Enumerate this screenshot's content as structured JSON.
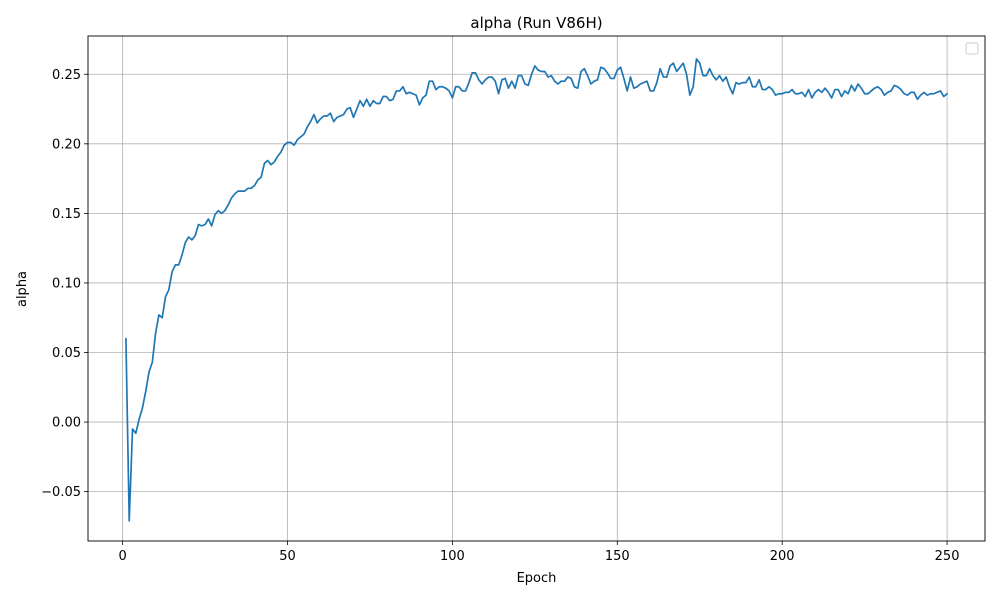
{
  "chart_data": {
    "type": "line",
    "title": "alpha (Run V86H)",
    "xlabel": "Epoch",
    "ylabel": "alpha",
    "xlim": [
      -10.5,
      261.5
    ],
    "ylim": [
      -0.0855,
      0.2775
    ],
    "xticks": [
      0,
      50,
      100,
      150,
      200,
      250
    ],
    "xtick_labels": [
      "0",
      "50",
      "100",
      "150",
      "200",
      "250"
    ],
    "yticks": [
      -0.05,
      0.0,
      0.05,
      0.1,
      0.15,
      0.2,
      0.25
    ],
    "ytick_labels": [
      "−0.05",
      "0.00",
      "0.05",
      "0.10",
      "0.15",
      "0.20",
      "0.25"
    ],
    "grid": true,
    "legend": "top-right",
    "line_color": "#1f77b4",
    "series": [
      {
        "x_start": 1,
        "x_step": 1,
        "values": [
          0.06,
          -0.071,
          -0.005,
          -0.008,
          0.002,
          0.01,
          0.022,
          0.036,
          0.043,
          0.064,
          0.077,
          0.075,
          0.09,
          0.095,
          0.108,
          0.113,
          0.113,
          0.12,
          0.129,
          0.133,
          0.131,
          0.134,
          0.142,
          0.141,
          0.142,
          0.146,
          0.141,
          0.149,
          0.152,
          0.15,
          0.152,
          0.156,
          0.161,
          0.164,
          0.166,
          0.166,
          0.166,
          0.168,
          0.168,
          0.17,
          0.174,
          0.176,
          0.186,
          0.188,
          0.185,
          0.187,
          0.191,
          0.194,
          0.199,
          0.201,
          0.201,
          0.199,
          0.203,
          0.205,
          0.207,
          0.212,
          0.216,
          0.221,
          0.215,
          0.218,
          0.22,
          0.22,
          0.222,
          0.216,
          0.219,
          0.22,
          0.221,
          0.225,
          0.226,
          0.219,
          0.225,
          0.231,
          0.227,
          0.232,
          0.227,
          0.231,
          0.229,
          0.229,
          0.234,
          0.234,
          0.231,
          0.232,
          0.238,
          0.238,
          0.241,
          0.236,
          0.237,
          0.236,
          0.235,
          0.228,
          0.233,
          0.235,
          0.245,
          0.245,
          0.239,
          0.241,
          0.241,
          0.24,
          0.238,
          0.233,
          0.241,
          0.241,
          0.238,
          0.238,
          0.244,
          0.251,
          0.251,
          0.246,
          0.243,
          0.246,
          0.248,
          0.248,
          0.245,
          0.236,
          0.246,
          0.247,
          0.24,
          0.245,
          0.24,
          0.249,
          0.249,
          0.243,
          0.242,
          0.25,
          0.256,
          0.253,
          0.252,
          0.252,
          0.248,
          0.249,
          0.245,
          0.243,
          0.245,
          0.245,
          0.248,
          0.247,
          0.241,
          0.24,
          0.252,
          0.254,
          0.249,
          0.243,
          0.245,
          0.246,
          0.255,
          0.254,
          0.251,
          0.247,
          0.247,
          0.253,
          0.255,
          0.247,
          0.238,
          0.248,
          0.24,
          0.241,
          0.243,
          0.244,
          0.245,
          0.238,
          0.238,
          0.244,
          0.254,
          0.248,
          0.248,
          0.256,
          0.258,
          0.252,
          0.255,
          0.258,
          0.25,
          0.235,
          0.241,
          0.261,
          0.258,
          0.249,
          0.249,
          0.254,
          0.249,
          0.246,
          0.249,
          0.245,
          0.248,
          0.241,
          0.236,
          0.244,
          0.243,
          0.244,
          0.244,
          0.248,
          0.241,
          0.241,
          0.246,
          0.239,
          0.239,
          0.241,
          0.239,
          0.235,
          0.236,
          0.236,
          0.237,
          0.237,
          0.239,
          0.236,
          0.236,
          0.237,
          0.234,
          0.239,
          0.233,
          0.237,
          0.239,
          0.237,
          0.24,
          0.237,
          0.233,
          0.239,
          0.239,
          0.234,
          0.238,
          0.236,
          0.242,
          0.238,
          0.243,
          0.24,
          0.236,
          0.236,
          0.238,
          0.24,
          0.241,
          0.239,
          0.235,
          0.237,
          0.238,
          0.242,
          0.241,
          0.239,
          0.236,
          0.235,
          0.237,
          0.237,
          0.232,
          0.235,
          0.237,
          0.235,
          0.236,
          0.236,
          0.237,
          0.238,
          0.234,
          0.236
        ]
      }
    ]
  }
}
